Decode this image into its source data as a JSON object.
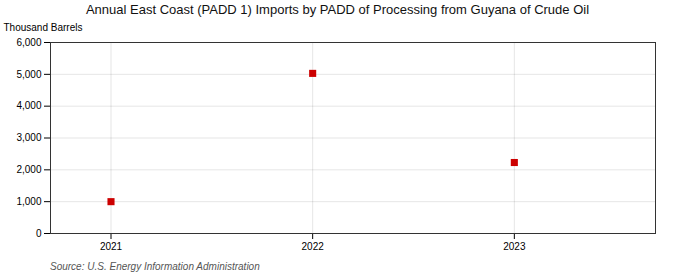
{
  "chart_data": {
    "type": "scatter",
    "title": "Annual East Coast (PADD 1) Imports by PADD of Processing from Guyana of Crude Oil",
    "ylabel": "Thousand Barrels",
    "annotations": [
      "Source: U.S. Energy Information Administration"
    ],
    "x": [
      2021,
      2022,
      2023
    ],
    "values": [
      1000,
      5030,
      2230
    ],
    "color": "#cc0000",
    "marker": "square",
    "xlim": [
      2020.7,
      2023.7
    ],
    "xticks": [
      2021,
      2022,
      2023
    ],
    "ylim": [
      0,
      6000
    ],
    "yticks": [
      0,
      {
        "value": 1000,
        "label": "1,000"
      },
      {
        "value": 2000,
        "label": "2,000"
      },
      {
        "value": 3000,
        "label": "3,000"
      },
      {
        "value": 4000,
        "label": "4,000"
      },
      {
        "value": 5000,
        "label": "5,000"
      },
      {
        "value": 6000,
        "label": "6,000"
      }
    ],
    "grid": true
  }
}
